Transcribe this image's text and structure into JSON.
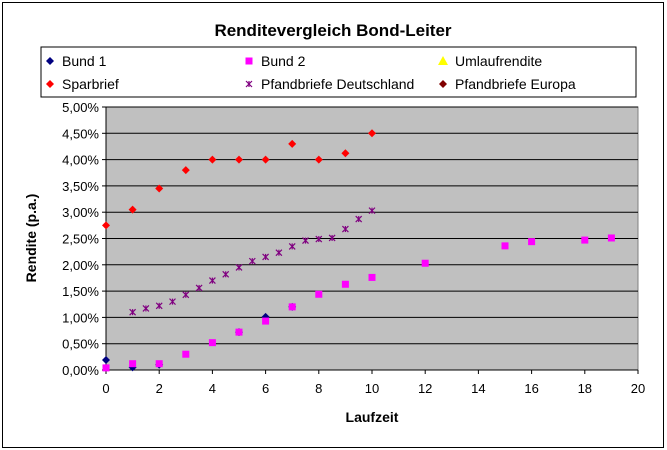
{
  "chart_data": {
    "type": "scatter",
    "title": "Renditevergleich Bond-Leiter",
    "xlabel": "Laufzeit",
    "ylabel": "Rendite (p.a.)",
    "xlim": [
      0,
      20
    ],
    "ylim": [
      0,
      5
    ],
    "x_ticks": [
      "0",
      "2",
      "4",
      "6",
      "8",
      "10",
      "12",
      "14",
      "16",
      "18",
      "20"
    ],
    "y_ticks": [
      "0,00%",
      "0,50%",
      "1,00%",
      "1,50%",
      "2,00%",
      "2,50%",
      "3,00%",
      "3,50%",
      "4,00%",
      "4,50%",
      "5,00%"
    ],
    "grid": "horizontal",
    "plot_background": "#c0c0c0",
    "legend_position": "top",
    "series": [
      {
        "name": "Bund 1",
        "color": "#000080",
        "marker": "diamond",
        "points": [
          [
            0,
            0.19
          ],
          [
            1,
            0.05
          ],
          [
            2,
            0.1
          ],
          [
            5,
            0.72
          ],
          [
            6,
            1.01
          ],
          [
            7,
            1.2
          ]
        ]
      },
      {
        "name": "Bund 2",
        "color": "#ff00ff",
        "marker": "square",
        "points": [
          [
            0,
            0.04
          ],
          [
            1,
            0.12
          ],
          [
            2,
            0.12
          ],
          [
            3,
            0.3
          ],
          [
            4,
            0.52
          ],
          [
            5,
            0.72
          ],
          [
            6,
            0.93
          ],
          [
            7,
            1.2
          ],
          [
            8,
            1.44
          ],
          [
            9,
            1.63
          ],
          [
            10,
            1.76
          ],
          [
            12,
            2.03
          ],
          [
            15,
            2.36
          ],
          [
            16,
            2.44
          ],
          [
            18,
            2.47
          ],
          [
            19,
            2.51
          ]
        ]
      },
      {
        "name": "Umlaufrendite",
        "color": "#ffff00",
        "marker": "triangle",
        "points": []
      },
      {
        "name": "Sparbrief",
        "color": "#ff0000",
        "marker": "diamond",
        "points": [
          [
            0,
            2.75
          ],
          [
            1,
            3.05
          ],
          [
            2,
            3.45
          ],
          [
            3,
            3.8
          ],
          [
            4,
            4.0
          ],
          [
            5,
            4.0
          ],
          [
            6,
            4.0
          ],
          [
            7,
            4.3
          ],
          [
            8,
            4.0
          ],
          [
            9,
            4.12
          ],
          [
            10,
            4.5
          ]
        ]
      },
      {
        "name": "Pfandbriefe Deutschland",
        "color": "#800080",
        "marker": "star",
        "points": [
          [
            1,
            1.1
          ],
          [
            1.5,
            1.17
          ],
          [
            2,
            1.22
          ],
          [
            2.5,
            1.3
          ],
          [
            3,
            1.43
          ],
          [
            3.5,
            1.56
          ],
          [
            4,
            1.7
          ],
          [
            4.5,
            1.82
          ],
          [
            5,
            1.95
          ],
          [
            5.5,
            2.07
          ],
          [
            6,
            2.15
          ],
          [
            6.5,
            2.23
          ],
          [
            7,
            2.35
          ],
          [
            7.5,
            2.46
          ],
          [
            8,
            2.49
          ],
          [
            8.5,
            2.51
          ],
          [
            9,
            2.68
          ],
          [
            9.5,
            2.87
          ],
          [
            10,
            3.03
          ]
        ]
      },
      {
        "name": "Pfandbriefe Europa",
        "color": "#800000",
        "marker": "diamond",
        "points": []
      }
    ]
  }
}
